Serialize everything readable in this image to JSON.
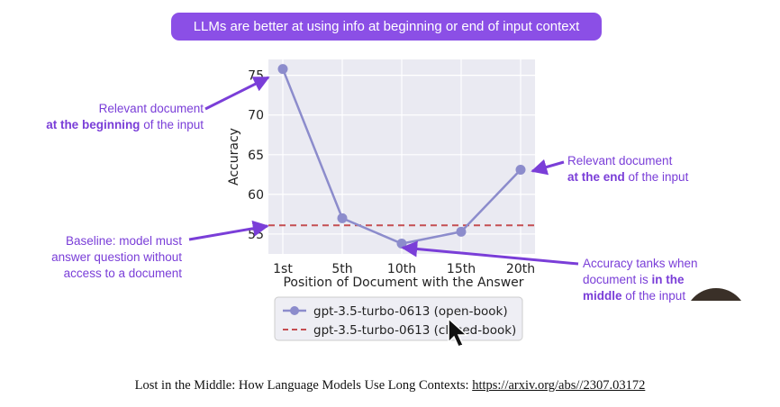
{
  "banner": {
    "text": "LLMs are better at using info at beginning or end of input context"
  },
  "chart_data": {
    "type": "line",
    "categories": [
      "1st",
      "5th",
      "10th",
      "15th",
      "20th"
    ],
    "series": [
      {
        "name": "gpt-3.5-turbo-0613 (open-book)",
        "values": [
          75.8,
          57.0,
          53.8,
          55.3,
          63.1
        ],
        "color": "#8c8ccc",
        "style": "solid-with-markers"
      }
    ],
    "baseline": {
      "name": "gpt-3.5-turbo-0613 (closed-book)",
      "value": 56.1,
      "color": "#c44e52",
      "style": "dashed"
    },
    "xlabel": "Position of Document with the Answer",
    "ylabel": "Accuracy",
    "yticks": [
      "55",
      "60",
      "65",
      "70",
      "75"
    ],
    "ylim": [
      52.5,
      77
    ],
    "grid": true,
    "legend_position": "below-plot"
  },
  "annotations": {
    "beginning": {
      "line1": "Relevant document",
      "bold": "at the beginning",
      "rest": " of the input"
    },
    "end": {
      "line1": "Relevant document",
      "bold": "at the end",
      "rest": " of the input"
    },
    "baseline": {
      "text": "Baseline: model must answer question without access to a document"
    },
    "middle": {
      "pre": "Accuracy tanks when document is ",
      "bold1": "in the",
      "bold2": "middle",
      "rest": " of the input"
    }
  },
  "citation": {
    "text": "Lost in the Middle: How Language Models Use Long Contexts: ",
    "link": "https://arxiv.org/abs//2307.03172"
  },
  "colors": {
    "accent": "#8b4fe6",
    "annotation": "#7a3ed8",
    "plot_bg": "#eaeaf2"
  }
}
